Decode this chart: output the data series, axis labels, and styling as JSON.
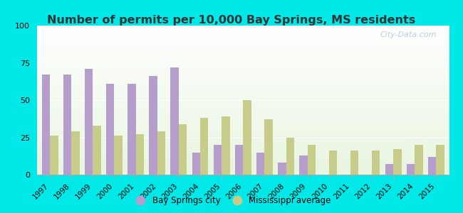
{
  "title": "Number of permits per 10,000 Bay Springs, MS residents",
  "years": [
    1997,
    1998,
    1999,
    2000,
    2001,
    2002,
    2003,
    2004,
    2005,
    2006,
    2007,
    2008,
    2009,
    2010,
    2011,
    2012,
    2013,
    2014,
    2015
  ],
  "bay_springs": [
    67,
    67,
    71,
    61,
    61,
    66,
    72,
    15,
    20,
    20,
    15,
    8,
    13,
    0,
    0,
    0,
    7,
    7,
    12
  ],
  "ms_average": [
    26,
    29,
    33,
    26,
    27,
    29,
    34,
    38,
    39,
    50,
    37,
    25,
    20,
    16,
    16,
    16,
    17,
    20,
    20
  ],
  "bar_color_city": "#b59dcc",
  "bar_color_ms": "#c8cc8a",
  "outer_bg": "#00e8e8",
  "ylim": [
    0,
    100
  ],
  "yticks": [
    0,
    25,
    50,
    75,
    100
  ],
  "legend_city": "Bay Springs city",
  "legend_ms": "Mississippi average",
  "watermark": "City-Data.com",
  "title_color": "#333333",
  "title_fontsize": 11.5
}
